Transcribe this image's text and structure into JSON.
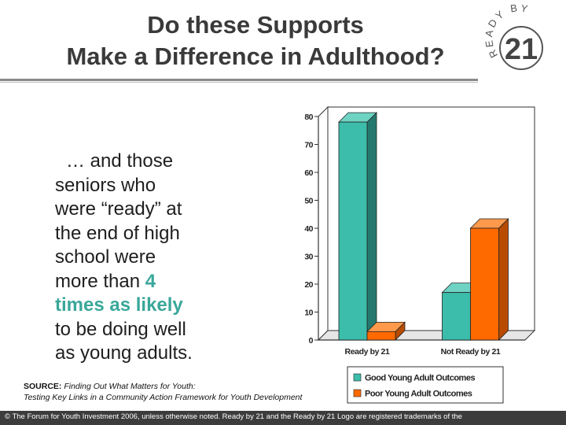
{
  "title": {
    "line1": "Do these Supports",
    "line2": "Make a Difference in Adulthood?"
  },
  "logo": {
    "arc_text": "READY BY",
    "number": "21",
    "colors": {
      "ring": "#555555",
      "number": "#444444"
    }
  },
  "body": {
    "part1_line1": "… and those",
    "part1_line2": "seniors who",
    "part1_line3": "were “ready” at",
    "part1_line4": "the end of high",
    "part1_line5": "school were",
    "part1_line6": "more than",
    "highlight_number": "4",
    "highlight_rest": "times as likely",
    "part2_line1": "to be doing well",
    "part2_line2": "as young adults.",
    "highlight_color": "#3aa79a"
  },
  "chart_data": {
    "type": "bar",
    "categories": [
      "Ready by 21",
      "Not Ready by 21"
    ],
    "series": [
      {
        "name": "Good Young Adult Outcomes",
        "values": [
          78,
          17
        ],
        "color": "#3cbcaa"
      },
      {
        "name": "Poor Young Adult Outcomes",
        "values": [
          3,
          40
        ],
        "color": "#ff6a00"
      }
    ],
    "ylim": [
      0,
      80
    ],
    "yticks": [
      "0",
      "10",
      "20",
      "30",
      "40",
      "50",
      "60",
      "70",
      "80"
    ],
    "legend_position": "bottom-right",
    "grid": false,
    "style": "3d"
  },
  "source": {
    "label": "SOURCE:",
    "text_line1": "Finding Out What Matters for Youth:",
    "text_line2": "Testing Key Links in a Community Action Framework for Youth Development"
  },
  "footer": {
    "copyright_symbol": "©",
    "text": "The Forum for Youth Investment 2006, unless otherwise noted. Ready by 21 and the Ready by 21 Logo are registered trademarks of the"
  }
}
